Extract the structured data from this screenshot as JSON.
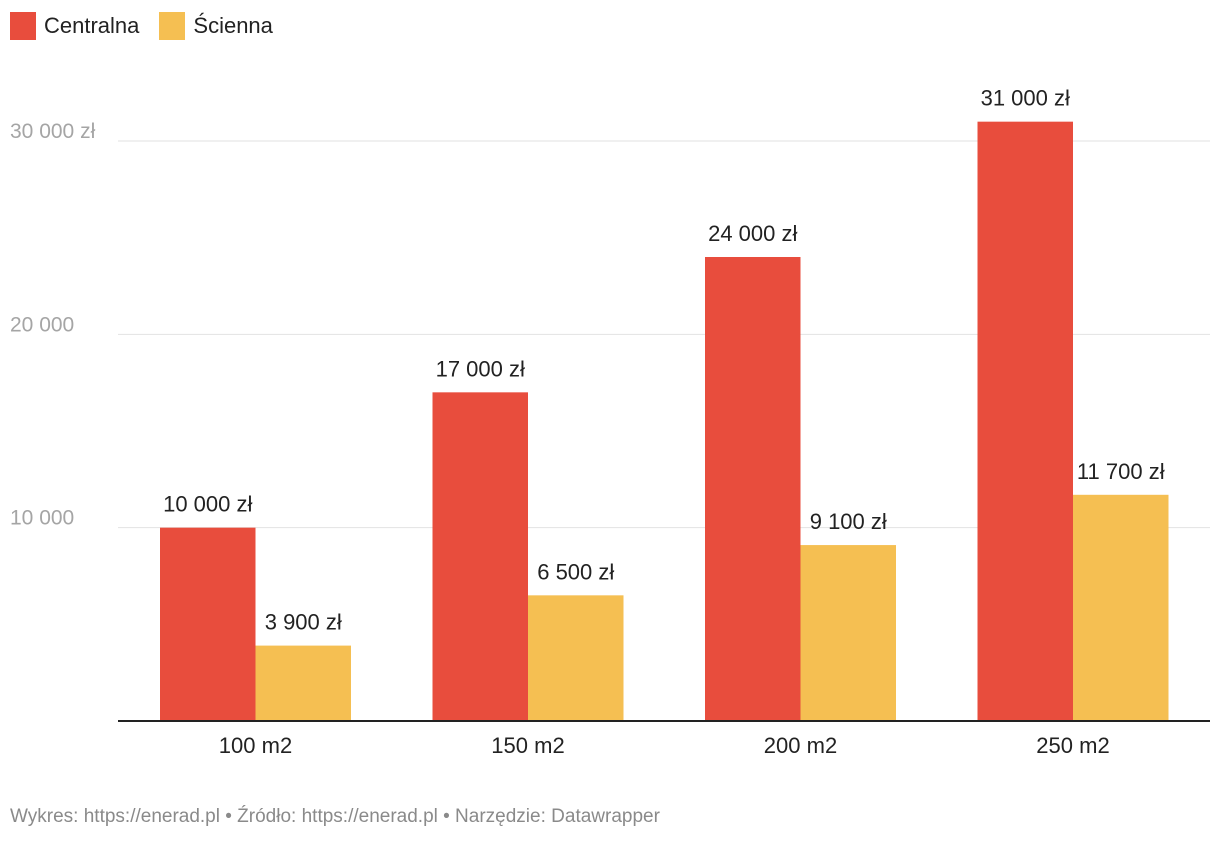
{
  "chart_data": {
    "type": "bar",
    "categories": [
      "100 m2",
      "150 m2",
      "200 m2",
      "250 m2"
    ],
    "series": [
      {
        "name": "Centralna",
        "color": "#e84d3d",
        "values": [
          10000,
          17000,
          24000,
          31000
        ],
        "labels": [
          "10 000 zł",
          "17 000 zł",
          "24 000 zł",
          "31 000 zł"
        ]
      },
      {
        "name": "Ścienna",
        "color": "#f5bf52",
        "values": [
          3900,
          6500,
          9100,
          11700
        ],
        "labels": [
          "3 900 zł",
          "6 500 zł",
          "9 100 zł",
          "11 700 zł"
        ]
      }
    ],
    "yticks": [
      {
        "value": 10000,
        "label": "10 000"
      },
      {
        "value": 20000,
        "label": "20 000"
      },
      {
        "value": 30000,
        "label": "30 000 zł"
      }
    ],
    "ylim": [
      0,
      31000
    ],
    "grid": true,
    "legend": "top-left",
    "title": "",
    "xlabel": "",
    "ylabel": ""
  },
  "footer": {
    "text": "Wykres: https://enerad.pl • Źródło: https://enerad.pl • Narzędzie: Datawrapper"
  }
}
